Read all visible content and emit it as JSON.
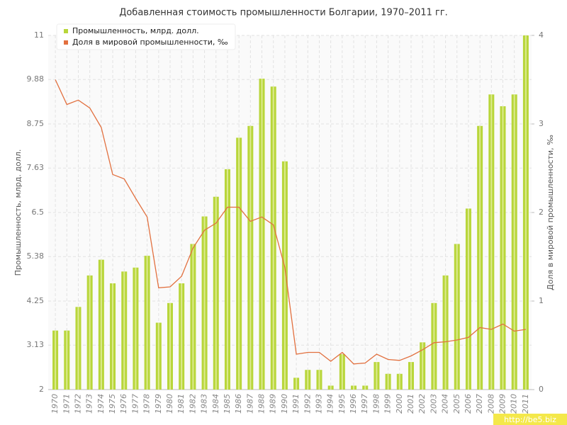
{
  "chart_data": {
    "type": "bar-line",
    "title": "Добавленная стоимость промышленности Болгарии, 1970–2011 гг.",
    "y_label": "Промышленность, млрд. долл.",
    "y2_label": "Доля в мировой промышленности, ‰",
    "watermark": "http://be5.biz",
    "categories": [
      "1970",
      "1971",
      "1972",
      "1973",
      "1974",
      "1975",
      "1976",
      "1977",
      "1978",
      "1979",
      "1980",
      "1981",
      "1982",
      "1983",
      "1984",
      "1985",
      "1986",
      "1987",
      "1988",
      "1989",
      "1990",
      "1991",
      "1992",
      "1993",
      "1994",
      "1995",
      "1996",
      "1997",
      "1998",
      "1999",
      "2000",
      "2001",
      "2002",
      "2003",
      "2004",
      "2005",
      "2006",
      "2007",
      "2008",
      "2009",
      "2010",
      "2011"
    ],
    "series": [
      {
        "name": "Промышленность, млрд. долл.",
        "color": "#b8d63a",
        "kind": "bar",
        "values": [
          3.5,
          3.5,
          4.1,
          4.9,
          5.3,
          4.7,
          5.0,
          5.1,
          5.4,
          3.7,
          4.2,
          4.7,
          5.7,
          6.4,
          6.9,
          7.6,
          8.4,
          8.7,
          9.9,
          9.7,
          7.8,
          2.3,
          2.5,
          2.5,
          2.1,
          2.9,
          2.1,
          2.1,
          2.7,
          2.4,
          2.4,
          2.7,
          3.2,
          4.2,
          4.9,
          5.7,
          6.6,
          8.7,
          9.5,
          9.2,
          9.5,
          11.0
        ]
      },
      {
        "name": "Доля в мировой промышленности, ‰",
        "color": "#e2703f",
        "kind": "line",
        "axis": "y2",
        "values": [
          3.5,
          3.22,
          3.27,
          3.18,
          2.96,
          2.43,
          2.38,
          2.16,
          1.95,
          1.15,
          1.16,
          1.28,
          1.6,
          1.8,
          1.88,
          2.06,
          2.06,
          1.9,
          1.95,
          1.86,
          1.38,
          0.4,
          0.42,
          0.42,
          0.32,
          0.42,
          0.29,
          0.3,
          0.4,
          0.34,
          0.33,
          0.38,
          0.45,
          0.53,
          0.54,
          0.56,
          0.59,
          0.7,
          0.68,
          0.74,
          0.66,
          0.68
        ]
      }
    ],
    "ylim": [
      2,
      11
    ],
    "yticks": [
      2,
      3.13,
      4.25,
      5.38,
      6.5,
      7.63,
      8.75,
      9.88,
      11
    ],
    "y2lim": [
      0,
      4
    ],
    "y2ticks": [
      0,
      1,
      2,
      3,
      4
    ],
    "grid": true,
    "legend": "top-left"
  }
}
